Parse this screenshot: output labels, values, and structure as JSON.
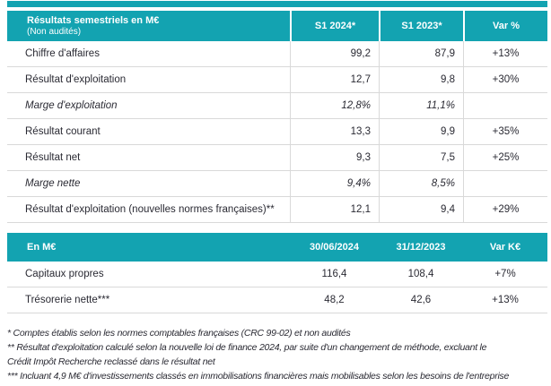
{
  "colors": {
    "accent_teal": "#13a3b1",
    "header_text": "#ffffff",
    "body_text": "#2a2a33",
    "grid_line": "#d9d9d9"
  },
  "table1": {
    "title": "Résultats semestriels en M€",
    "subtitle": "(Non audités)",
    "columns": [
      "S1 2024*",
      "S1 2023*",
      "Var %"
    ],
    "rows": [
      {
        "label": "Chiffre d'affaires",
        "s1_2024": "99,2",
        "s1_2023": "87,9",
        "var": "+13%"
      },
      {
        "label": "Résultat d'exploitation",
        "s1_2024": "12,7",
        "s1_2023": "9,8",
        "var": "+30%"
      },
      {
        "label": "Marge d'exploitation",
        "s1_2024": "12,8%",
        "s1_2023": "11,1%",
        "var": ""
      },
      {
        "label": "Résultat courant",
        "s1_2024": "13,3",
        "s1_2023": "9,9",
        "var": "+35%"
      },
      {
        "label": "Résultat net",
        "s1_2024": "9,3",
        "s1_2023": "7,5",
        "var": "+25%"
      },
      {
        "label": "Marge nette",
        "s1_2024": "9,4%",
        "s1_2023": "8,5%",
        "var": ""
      },
      {
        "label": "Résultat d'exploitation (nouvelles normes françaises)**",
        "s1_2024": "12,1",
        "s1_2023": "9,4",
        "var": "+29%"
      }
    ]
  },
  "table2": {
    "title": "En M€",
    "columns": [
      "30/06/2024",
      "31/12/2023",
      "Var K€"
    ],
    "rows": [
      {
        "label": "Capitaux propres",
        "v1": "116,4",
        "v2": "108,4",
        "var": "+7%"
      },
      {
        "label": "Trésorerie nette***",
        "v1": "48,2",
        "v2": "42,6",
        "var": "+13%"
      }
    ]
  },
  "footnotes": {
    "note1": "* Comptes établis selon les normes comptables françaises (CRC 99-02) et non audités",
    "note2_line1": "** Résultat d'exploitation calculé selon la nouvelle loi de finance 2024, par suite d'un changement de méthode, excluant le",
    "note2_line2": "Crédit Impôt Recherche reclassé dans le résultat net",
    "note3": "*** Incluant 4,9 M€ d'investissements classés en immobilisations financières mais mobilisables selon les besoins de l'entreprise"
  }
}
